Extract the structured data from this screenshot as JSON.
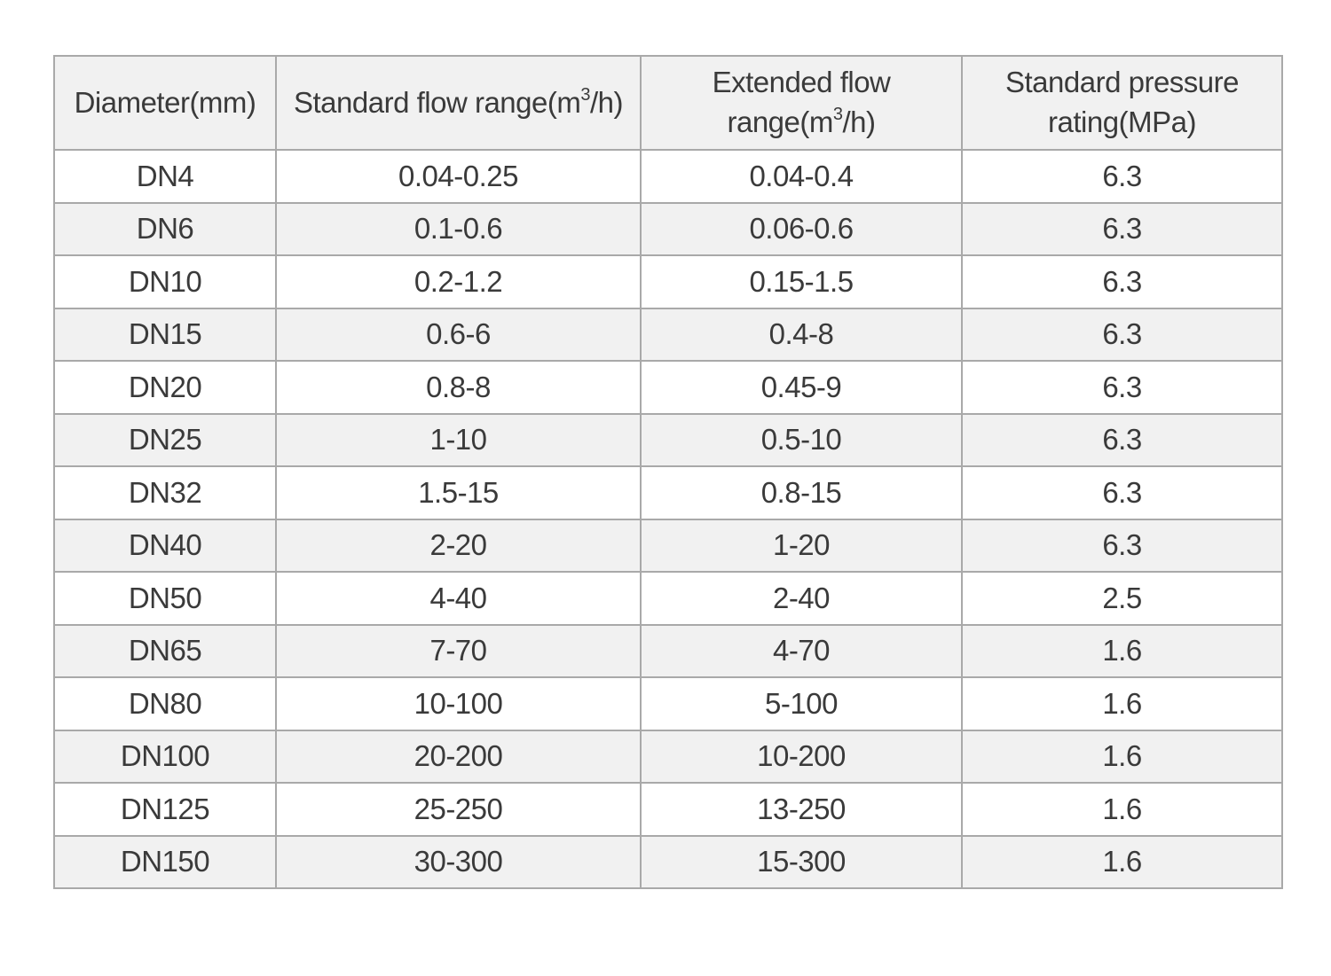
{
  "table": {
    "headers": {
      "diameter": "Diameter(mm)",
      "standard_flow_prefix": "Standard flow range(m",
      "standard_flow_sup": "3",
      "standard_flow_suffix": "/h)",
      "extended_flow_prefix": "Extended flow range(m",
      "extended_flow_sup": "3",
      "extended_flow_suffix": "/h)",
      "pressure_line1": "Standard pressure",
      "pressure_line2": "rating(MPa)"
    },
    "rows": [
      [
        "DN4",
        "0.04-0.25",
        "0.04-0.4",
        "6.3"
      ],
      [
        "DN6",
        "0.1-0.6",
        "0.06-0.6",
        "6.3"
      ],
      [
        "DN10",
        "0.2-1.2",
        "0.15-1.5",
        "6.3"
      ],
      [
        "DN15",
        "0.6-6",
        "0.4-8",
        "6.3"
      ],
      [
        "DN20",
        "0.8-8",
        "0.45-9",
        "6.3"
      ],
      [
        "DN25",
        "1-10",
        "0.5-10",
        "6.3"
      ],
      [
        "DN32",
        "1.5-15",
        "0.8-15",
        "6.3"
      ],
      [
        "DN40",
        "2-20",
        "1-20",
        "6.3"
      ],
      [
        "DN50",
        "4-40",
        "2-40",
        "2.5"
      ],
      [
        "DN65",
        "7-70",
        "4-70",
        "1.6"
      ],
      [
        "DN80",
        "10-100",
        "5-100",
        "1.6"
      ],
      [
        "DN100",
        "20-200",
        "10-200",
        "1.6"
      ],
      [
        "DN125",
        "25-250",
        "13-250",
        "1.6"
      ],
      [
        "DN150",
        "30-300",
        "15-300",
        "1.6"
      ]
    ]
  }
}
